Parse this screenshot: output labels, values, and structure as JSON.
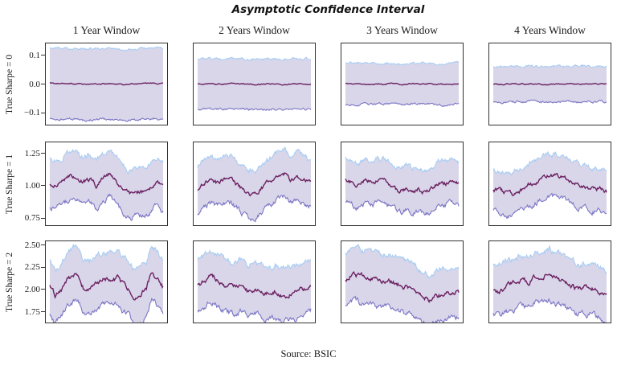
{
  "source": "Source: BSIC",
  "colors": {
    "band_fill": "#d9d6ea",
    "upper_line": "#a9cdf2",
    "lower_line": "#7b76c4",
    "center_line": "#6b2161",
    "spine": "#333333",
    "text": "#1a1a1a"
  },
  "chart_data": {
    "type": "line",
    "title": "Asymptotic Confidence Interval",
    "subtitle": "",
    "xlabel": "",
    "ylabel": "",
    "grid": false,
    "legend": "none",
    "layout": "3 rows (True Sharpe = 0,1,2) x 4 columns (rolling window length); each panel shows rolling Sharpe estimate (center line) with asymptotic confidence band (shaded), no x-axis ticks",
    "columns": [
      "1 Year Window",
      "2 Years Window",
      "3 Years Window",
      "4 Years Window"
    ],
    "rows": [
      {
        "label": "True Sharpe = 0",
        "ylim": [
          -0.145,
          0.145
        ],
        "yticks": [
          0.1,
          0.0,
          -0.1
        ],
        "ytick_labels": [
          "0.1",
          "0.0",
          "−0.1"
        ]
      },
      {
        "label": "True Sharpe = 1",
        "ylim": [
          0.69,
          1.34
        ],
        "yticks": [
          1.25,
          1.0,
          0.75
        ],
        "ytick_labels": [
          "1.25",
          "1.00",
          "0.75"
        ]
      },
      {
        "label": "True Sharpe = 2",
        "ylim": [
          1.62,
          2.55
        ],
        "yticks": [
          2.5,
          2.25,
          2.0,
          1.75
        ],
        "ytick_labels": [
          "2.50",
          "2.25",
          "2.00",
          "1.75"
        ]
      }
    ],
    "subplots": [
      {
        "row": 0,
        "col": 0,
        "half_width": 0.124,
        "center_noise": 0.0015,
        "edge_noise": 0.003,
        "center": [
          0.003,
          0.001,
          0.002,
          0.0,
          -0.002,
          0.001,
          0.002,
          0.0,
          -0.003,
          -0.001,
          0.002,
          0.003,
          0.002
        ]
      },
      {
        "row": 0,
        "col": 1,
        "half_width": 0.088,
        "center_noise": 0.0015,
        "edge_noise": 0.003,
        "center": [
          0.0,
          0.001,
          -0.001,
          0.0,
          0.002,
          0.0,
          -0.002,
          0.0,
          0.001,
          -0.001,
          0.0,
          0.001,
          0.0
        ]
      },
      {
        "row": 0,
        "col": 2,
        "half_width": 0.071,
        "center_noise": 0.0015,
        "edge_noise": 0.003,
        "center": [
          0.001,
          0.0,
          -0.001,
          0.001,
          0.0,
          0.001,
          -0.001,
          0.0,
          0.001,
          0.0,
          -0.001,
          0.0,
          0.001
        ]
      },
      {
        "row": 0,
        "col": 3,
        "half_width": 0.062,
        "center_noise": 0.0015,
        "edge_noise": 0.003,
        "center": [
          0.0,
          -0.001,
          0.001,
          0.0,
          0.001,
          -0.001,
          0.0,
          0.001,
          0.0,
          -0.001,
          0.001,
          0.0,
          -0.001
        ]
      },
      {
        "row": 1,
        "col": 0,
        "half_width": 0.185,
        "center_noise": 0.013,
        "edge_noise": 0.016,
        "center": [
          1.02,
          1.005,
          1.04,
          1.07,
          1.08,
          1.03,
          1.05,
          1.0,
          1.06,
          1.1,
          1.04,
          0.97,
          0.93,
          0.96,
          0.95,
          0.97,
          1.04,
          0.985
        ]
      },
      {
        "row": 1,
        "col": 1,
        "half_width": 0.18,
        "center_noise": 0.013,
        "edge_noise": 0.016,
        "center": [
          0.97,
          1.02,
          1.05,
          1.02,
          1.05,
          1.04,
          1.0,
          0.96,
          0.93,
          0.95,
          1.0,
          1.04,
          1.08,
          1.09,
          1.05,
          1.07,
          1.04,
          1.02
        ]
      },
      {
        "row": 1,
        "col": 2,
        "half_width": 0.17,
        "center_noise": 0.013,
        "edge_noise": 0.016,
        "center": [
          1.05,
          1.02,
          1.0,
          1.04,
          1.02,
          1.045,
          1.03,
          1.0,
          0.95,
          0.975,
          0.96,
          0.97,
          0.94,
          0.98,
          1.03,
          1.02,
          1.04,
          1.01
        ]
      },
      {
        "row": 1,
        "col": 3,
        "half_width": 0.165,
        "center_noise": 0.013,
        "edge_noise": 0.016,
        "center": [
          0.97,
          0.955,
          0.94,
          0.93,
          0.96,
          1.0,
          1.02,
          1.05,
          1.075,
          1.08,
          1.07,
          1.05,
          1.02,
          1.0,
          0.99,
          0.97,
          0.985,
          0.955
        ]
      },
      {
        "row": 2,
        "col": 0,
        "half_width": 0.3,
        "center_noise": 0.022,
        "edge_noise": 0.026,
        "center": [
          2.03,
          1.92,
          1.99,
          2.1,
          2.16,
          2.18,
          2.02,
          2.0,
          2.07,
          2.1,
          2.12,
          2.1,
          2.13,
          2.05,
          2.0,
          1.91,
          1.95,
          2.0,
          2.2,
          2.12,
          2.03
        ]
      },
      {
        "row": 2,
        "col": 1,
        "half_width": 0.29,
        "center_noise": 0.022,
        "edge_noise": 0.026,
        "center": [
          2.05,
          2.1,
          2.15,
          2.1,
          2.04,
          2.0,
          2.05,
          1.98,
          2.02,
          1.97,
          1.95,
          1.98,
          1.92,
          1.95,
          1.97,
          2.0,
          2.05
        ]
      },
      {
        "row": 2,
        "col": 2,
        "half_width": 0.285,
        "center_noise": 0.022,
        "edge_noise": 0.026,
        "center": [
          2.1,
          2.18,
          2.15,
          2.13,
          2.12,
          2.1,
          2.11,
          2.08,
          2.05,
          2.0,
          1.97,
          1.92,
          1.88,
          1.92,
          1.95,
          1.97,
          1.98
        ]
      },
      {
        "row": 2,
        "col": 3,
        "half_width": 0.28,
        "center_noise": 0.022,
        "edge_noise": 0.026,
        "center": [
          2.0,
          1.98,
          2.03,
          2.06,
          2.1,
          2.08,
          2.14,
          2.12,
          2.17,
          2.12,
          2.08,
          2.05,
          2.0,
          2.02,
          2.0,
          1.97,
          1.92
        ]
      }
    ]
  }
}
